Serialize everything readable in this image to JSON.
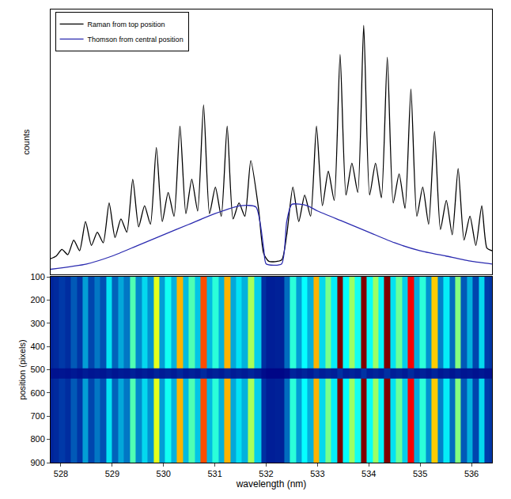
{
  "chart_data": [
    {
      "type": "line",
      "y_label": "counts",
      "xlim": [
        527.8,
        536.4
      ],
      "ylim": [
        0,
        1000
      ],
      "tick_labels": false,
      "legend": "top-left",
      "series": [
        {
          "name": "Raman from top position",
          "color": "#000000",
          "x": [
            527.8,
            527.91,
            528.02,
            528.135,
            528.25,
            528.365,
            528.48,
            528.595,
            528.71,
            528.825,
            528.94,
            529.055,
            529.17,
            529.285,
            529.4,
            529.515,
            529.63,
            529.745,
            529.86,
            529.975,
            530.09,
            530.205,
            530.32,
            530.435,
            530.55,
            530.665,
            530.78,
            530.895,
            531.01,
            531.125,
            531.24,
            531.355,
            531.47,
            531.585,
            531.7,
            531.85,
            531.95,
            532.05,
            532.3,
            532.4,
            532.52,
            532.635,
            532.75,
            532.865,
            532.98,
            533.095,
            533.21,
            533.325,
            533.44,
            533.555,
            533.67,
            533.785,
            533.9,
            534.015,
            534.13,
            534.245,
            534.36,
            534.475,
            534.59,
            534.705,
            534.82,
            534.935,
            535.05,
            535.165,
            535.28,
            535.395,
            535.51,
            535.625,
            535.74,
            535.855,
            535.97,
            536.085,
            536.2,
            536.3,
            536.4
          ],
          "values": [
            60,
            70,
            95,
            75,
            130,
            90,
            200,
            110,
            160,
            120,
            270,
            140,
            210,
            160,
            360,
            180,
            260,
            190,
            480,
            200,
            310,
            220,
            560,
            230,
            360,
            240,
            640,
            230,
            330,
            220,
            560,
            210,
            270,
            220,
            430,
            250,
            80,
            50,
            55,
            150,
            330,
            200,
            300,
            220,
            560,
            260,
            390,
            280,
            830,
            300,
            420,
            310,
            940,
            300,
            420,
            290,
            820,
            270,
            380,
            250,
            700,
            220,
            330,
            190,
            540,
            170,
            280,
            150,
            400,
            130,
            220,
            110,
            260,
            100,
            90
          ]
        },
        {
          "name": "Thomson from central position",
          "color": "#2b2bb0",
          "x": [
            527.8,
            528.5,
            529,
            529.5,
            530,
            530.5,
            531,
            531.5,
            531.8,
            531.95,
            532.0,
            532.3,
            532.4,
            532.5,
            532.8,
            533,
            533.5,
            534,
            534.5,
            535,
            535.5,
            536,
            536.4
          ],
          "values": [
            20,
            40,
            70,
            110,
            150,
            190,
            230,
            260,
            255,
            100,
            40,
            40,
            200,
            265,
            260,
            240,
            200,
            160,
            120,
            90,
            70,
            50,
            40
          ]
        }
      ]
    },
    {
      "type": "heatmap",
      "x_label": "wavelength (nm)",
      "y_label": "position (pixels)",
      "xlim": [
        527.8,
        536.4
      ],
      "ylim": [
        900,
        100
      ],
      "xticks": [
        528,
        529,
        530,
        531,
        532,
        533,
        534,
        535,
        536
      ],
      "yticks": [
        100,
        200,
        300,
        400,
        500,
        600,
        700,
        800,
        900
      ],
      "color": "Jet",
      "zlim": [
        0,
        800
      ],
      "x": [
        527.8,
        527.91,
        528.02,
        528.135,
        528.25,
        528.365,
        528.48,
        528.595,
        528.71,
        528.825,
        528.94,
        529.055,
        529.17,
        529.285,
        529.4,
        529.515,
        529.63,
        529.745,
        529.86,
        529.975,
        530.09,
        530.205,
        530.32,
        530.435,
        530.55,
        530.665,
        530.78,
        530.895,
        531.01,
        531.125,
        531.24,
        531.355,
        531.47,
        531.585,
        531.7,
        531.85,
        531.95,
        532.05,
        532.3,
        532.4,
        532.52,
        532.635,
        532.75,
        532.865,
        532.98,
        533.095,
        533.21,
        533.325,
        533.44,
        533.555,
        533.67,
        533.785,
        533.9,
        534.015,
        534.13,
        534.245,
        534.36,
        534.475,
        534.59,
        534.705,
        534.82,
        534.935,
        535.05,
        535.165,
        535.28,
        535.395,
        535.51,
        535.625,
        535.74,
        535.855,
        535.97,
        536.085,
        536.2,
        536.3,
        536.4
      ],
      "y": [
        100,
        300,
        470,
        515,
        560,
        700,
        900
      ],
      "z": [
        [
          60,
          70,
          95,
          75,
          130,
          90,
          200,
          110,
          160,
          120,
          270,
          140,
          210,
          160,
          360,
          180,
          260,
          190,
          480,
          200,
          310,
          220,
          560,
          230,
          360,
          240,
          640,
          230,
          330,
          220,
          560,
          210,
          270,
          220,
          430,
          250,
          80,
          50,
          55,
          150,
          330,
          200,
          300,
          220,
          560,
          260,
          390,
          280,
          830,
          300,
          420,
          310,
          940,
          300,
          420,
          290,
          820,
          270,
          380,
          250,
          700,
          220,
          330,
          190,
          540,
          170,
          280,
          150,
          400,
          130,
          220,
          110,
          260,
          100,
          90
        ],
        [
          60,
          70,
          95,
          75,
          130,
          90,
          200,
          110,
          160,
          120,
          270,
          140,
          210,
          160,
          360,
          180,
          260,
          190,
          480,
          200,
          310,
          220,
          560,
          230,
          360,
          240,
          640,
          230,
          330,
          220,
          560,
          210,
          270,
          220,
          430,
          250,
          80,
          50,
          55,
          150,
          330,
          200,
          300,
          220,
          560,
          260,
          390,
          280,
          830,
          300,
          420,
          310,
          940,
          300,
          420,
          290,
          820,
          270,
          380,
          250,
          700,
          220,
          330,
          190,
          540,
          170,
          280,
          150,
          400,
          130,
          220,
          110,
          260,
          100,
          90
        ],
        [
          60,
          70,
          95,
          75,
          130,
          90,
          200,
          110,
          160,
          120,
          270,
          140,
          210,
          160,
          360,
          180,
          260,
          190,
          480,
          200,
          310,
          220,
          560,
          230,
          360,
          240,
          640,
          230,
          330,
          220,
          560,
          210,
          270,
          220,
          430,
          250,
          80,
          50,
          55,
          150,
          330,
          200,
          300,
          220,
          560,
          260,
          390,
          280,
          830,
          300,
          420,
          310,
          940,
          300,
          420,
          290,
          820,
          270,
          380,
          250,
          700,
          220,
          330,
          190,
          540,
          170,
          280,
          150,
          400,
          130,
          220,
          110,
          260,
          100,
          90
        ],
        [
          30,
          30,
          35,
          30,
          40,
          30,
          45,
          35,
          40,
          35,
          50,
          35,
          45,
          40,
          55,
          40,
          50,
          40,
          60,
          45,
          55,
          45,
          65,
          45,
          55,
          45,
          70,
          45,
          55,
          45,
          65,
          45,
          55,
          45,
          60,
          45,
          20,
          10,
          10,
          20,
          60,
          45,
          60,
          45,
          70,
          50,
          60,
          50,
          80,
          50,
          60,
          50,
          85,
          50,
          60,
          50,
          80,
          50,
          60,
          45,
          70,
          45,
          55,
          40,
          60,
          40,
          50,
          35,
          50,
          35,
          40,
          30,
          40,
          30,
          30
        ],
        [
          60,
          70,
          95,
          75,
          130,
          90,
          200,
          110,
          160,
          120,
          270,
          140,
          210,
          160,
          360,
          180,
          260,
          190,
          480,
          200,
          310,
          220,
          560,
          230,
          360,
          240,
          640,
          230,
          330,
          220,
          560,
          210,
          270,
          220,
          430,
          250,
          80,
          50,
          55,
          150,
          330,
          200,
          300,
          220,
          560,
          260,
          390,
          280,
          830,
          300,
          420,
          310,
          940,
          300,
          420,
          290,
          820,
          270,
          380,
          250,
          700,
          220,
          330,
          190,
          540,
          170,
          280,
          150,
          400,
          130,
          220,
          110,
          260,
          100,
          90
        ],
        [
          60,
          70,
          95,
          75,
          130,
          90,
          200,
          110,
          160,
          120,
          270,
          140,
          210,
          160,
          360,
          180,
          260,
          190,
          480,
          200,
          310,
          220,
          560,
          230,
          360,
          240,
          640,
          230,
          330,
          220,
          560,
          210,
          270,
          220,
          430,
          250,
          80,
          50,
          55,
          150,
          330,
          200,
          300,
          220,
          560,
          260,
          390,
          280,
          830,
          300,
          420,
          310,
          940,
          300,
          420,
          290,
          820,
          270,
          380,
          250,
          700,
          220,
          330,
          190,
          540,
          170,
          280,
          150,
          400,
          130,
          220,
          110,
          260,
          100,
          90
        ],
        [
          60,
          70,
          95,
          75,
          130,
          90,
          200,
          110,
          160,
          120,
          270,
          140,
          210,
          160,
          360,
          180,
          260,
          190,
          480,
          200,
          310,
          220,
          560,
          230,
          360,
          240,
          640,
          230,
          330,
          220,
          560,
          210,
          270,
          220,
          430,
          250,
          80,
          50,
          55,
          150,
          330,
          200,
          300,
          220,
          560,
          260,
          390,
          280,
          830,
          300,
          420,
          310,
          940,
          300,
          420,
          290,
          820,
          270,
          380,
          250,
          700,
          220,
          330,
          190,
          540,
          170,
          280,
          150,
          400,
          130,
          220,
          110,
          260,
          100,
          90
        ]
      ]
    }
  ]
}
